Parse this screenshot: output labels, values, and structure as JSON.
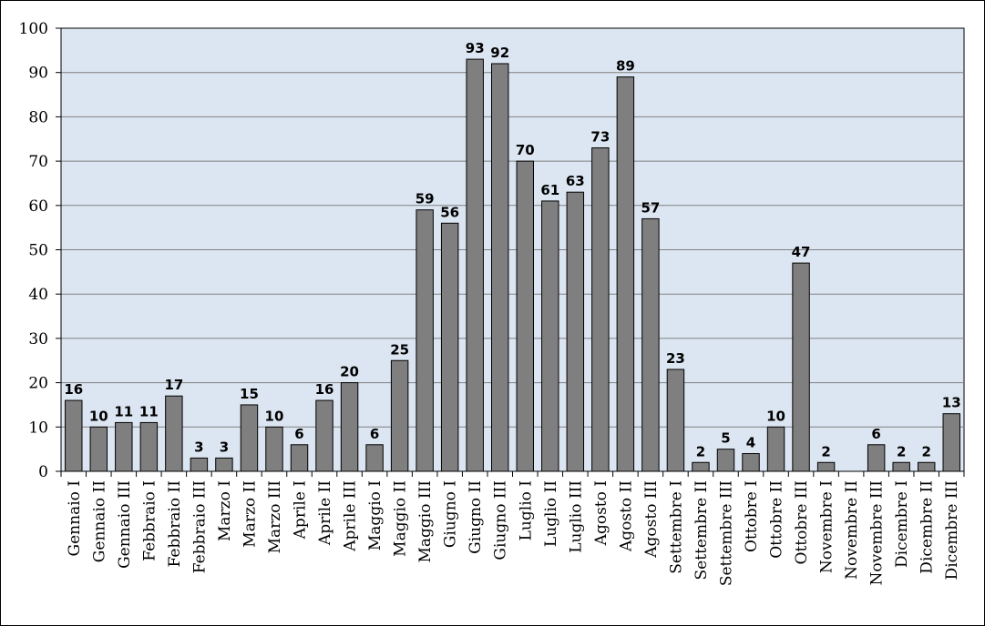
{
  "chart_data": {
    "type": "bar",
    "title": "",
    "xlabel": "",
    "ylabel": "",
    "ylim": [
      0,
      100
    ],
    "yticks": [
      0,
      10,
      20,
      30,
      40,
      50,
      60,
      70,
      80,
      90,
      100
    ],
    "grid": true,
    "legend": "none",
    "categories": [
      "Gennaio I",
      "Gennaio II",
      "Gennaio III",
      "Febbraio I",
      "Febbraio II",
      "Febbraio III",
      "Marzo I",
      "Marzo II",
      "Marzo III",
      "Aprile I",
      "Aprile II",
      "Aprile III",
      "Maggio I",
      "Maggio II",
      "Maggio III",
      "Giugno I",
      "Giugno II",
      "Giugno III",
      "Luglio I",
      "Luglio II",
      "Luglio III",
      "Agosto I",
      "Agosto II",
      "Agosto III",
      "Settembre I",
      "Settembre II",
      "Settembre III",
      "Ottobre I",
      "Ottobre II",
      "Ottobre III",
      "Novembre I",
      "Novembre II",
      "Novembre III",
      "Dicembre I",
      "Dicembre II",
      "Dicembre III"
    ],
    "values": [
      16,
      10,
      11,
      11,
      17,
      3,
      3,
      15,
      10,
      6,
      16,
      20,
      6,
      25,
      59,
      56,
      93,
      92,
      70,
      61,
      63,
      73,
      89,
      57,
      23,
      2,
      5,
      4,
      10,
      47,
      2,
      0,
      6,
      2,
      2,
      13
    ],
    "data_labels": [
      "16",
      "10",
      "11",
      "11",
      "17",
      "3",
      "3",
      "15",
      "10",
      "6",
      "16",
      "20",
      "6",
      "25",
      "59",
      "56",
      "93",
      "92",
      "70",
      "61",
      "63",
      "73",
      "89",
      "57",
      "23",
      "2",
      "5",
      "4",
      "10",
      "47",
      "2",
      "",
      "6",
      "2",
      "2",
      "13"
    ],
    "colors": {
      "plot_background": "#DCE6F2",
      "bar_fill": "#7F7F7F",
      "bar_stroke": "#000000",
      "gridline": "#808080",
      "axis": "#000000"
    }
  }
}
